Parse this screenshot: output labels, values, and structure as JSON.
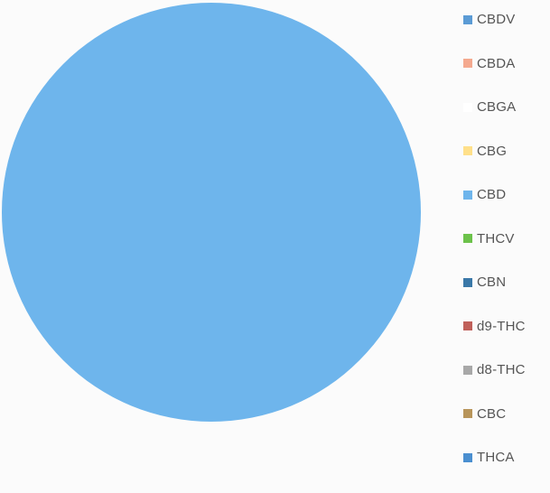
{
  "chart_data": {
    "type": "pie",
    "title": "",
    "legend_position": "right",
    "slices": [
      {
        "label": "CBDV",
        "value": 0,
        "color": "#5b9bd5"
      },
      {
        "label": "CBDA",
        "value": 0,
        "color": "#f4a98f"
      },
      {
        "label": "CBGA",
        "value": 0,
        "color": "#ffffff"
      },
      {
        "label": "CBG",
        "value": 0,
        "color": "#ffe08a"
      },
      {
        "label": "CBD",
        "value": 100,
        "color": "#6eb5ec"
      },
      {
        "label": "THCV",
        "value": 0,
        "color": "#6cc24a"
      },
      {
        "label": "CBN",
        "value": 0,
        "color": "#3a78a8"
      },
      {
        "label": "d9-THC",
        "value": 0,
        "color": "#c0605a"
      },
      {
        "label": "d8-THC",
        "value": 0,
        "color": "#a8a8a8"
      },
      {
        "label": "CBC",
        "value": 0,
        "color": "#b8955a"
      },
      {
        "label": "THCA",
        "value": 0,
        "color": "#4a8fd0"
      }
    ]
  }
}
